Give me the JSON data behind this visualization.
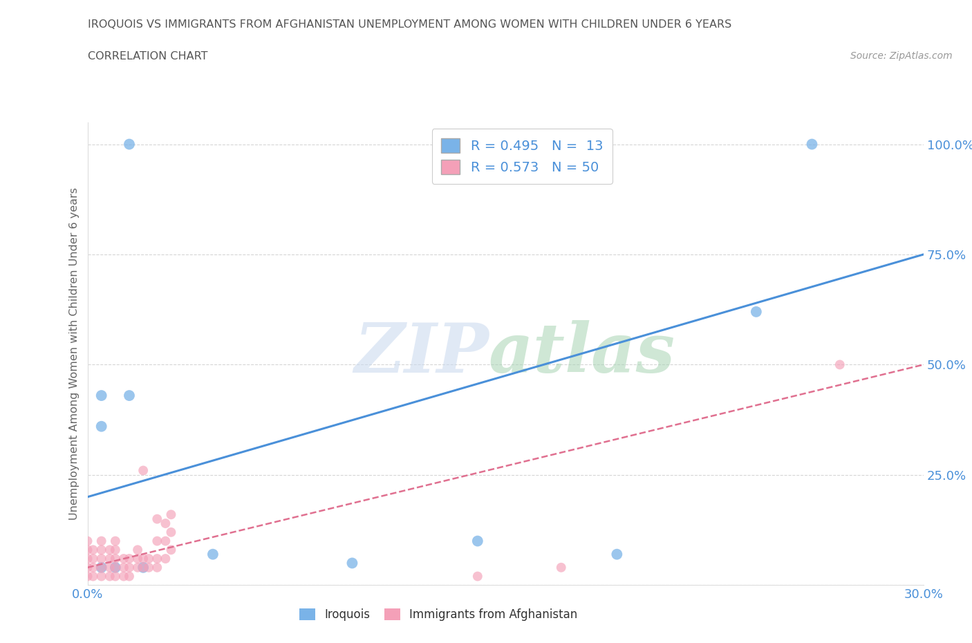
{
  "title_line1": "IROQUOIS VS IMMIGRANTS FROM AFGHANISTAN UNEMPLOYMENT AMONG WOMEN WITH CHILDREN UNDER 6 YEARS",
  "title_line2": "CORRELATION CHART",
  "source_text": "Source: ZipAtlas.com",
  "ylabel": "Unemployment Among Women with Children Under 6 years",
  "xlim": [
    0.0,
    0.3
  ],
  "ylim": [
    0.0,
    1.05
  ],
  "legend_items": [
    {
      "label": "R = 0.495   N =  13",
      "color": "#aec6f0"
    },
    {
      "label": "R = 0.573   N = 50",
      "color": "#f4b8c8"
    }
  ],
  "legend_bottom": [
    "Iroquois",
    "Immigrants from Afghanistan"
  ],
  "iroquois_points": [
    [
      0.015,
      1.0
    ],
    [
      0.26,
      1.0
    ],
    [
      0.005,
      0.43
    ],
    [
      0.015,
      0.43
    ],
    [
      0.24,
      0.62
    ],
    [
      0.005,
      0.36
    ],
    [
      0.14,
      0.1
    ],
    [
      0.005,
      0.04
    ],
    [
      0.01,
      0.04
    ],
    [
      0.02,
      0.04
    ],
    [
      0.045,
      0.07
    ],
    [
      0.19,
      0.07
    ],
    [
      0.095,
      0.05
    ]
  ],
  "afghanistan_points": [
    [
      0.0,
      0.02
    ],
    [
      0.0,
      0.04
    ],
    [
      0.0,
      0.06
    ],
    [
      0.0,
      0.08
    ],
    [
      0.0,
      0.1
    ],
    [
      0.002,
      0.02
    ],
    [
      0.002,
      0.04
    ],
    [
      0.002,
      0.06
    ],
    [
      0.002,
      0.08
    ],
    [
      0.005,
      0.02
    ],
    [
      0.005,
      0.04
    ],
    [
      0.005,
      0.06
    ],
    [
      0.005,
      0.08
    ],
    [
      0.005,
      0.1
    ],
    [
      0.008,
      0.02
    ],
    [
      0.008,
      0.04
    ],
    [
      0.008,
      0.06
    ],
    [
      0.008,
      0.08
    ],
    [
      0.01,
      0.02
    ],
    [
      0.01,
      0.04
    ],
    [
      0.01,
      0.06
    ],
    [
      0.01,
      0.08
    ],
    [
      0.01,
      0.1
    ],
    [
      0.013,
      0.02
    ],
    [
      0.013,
      0.04
    ],
    [
      0.013,
      0.06
    ],
    [
      0.015,
      0.02
    ],
    [
      0.015,
      0.04
    ],
    [
      0.015,
      0.06
    ],
    [
      0.018,
      0.04
    ],
    [
      0.018,
      0.06
    ],
    [
      0.018,
      0.08
    ],
    [
      0.02,
      0.04
    ],
    [
      0.02,
      0.06
    ],
    [
      0.02,
      0.26
    ],
    [
      0.022,
      0.04
    ],
    [
      0.022,
      0.06
    ],
    [
      0.025,
      0.04
    ],
    [
      0.025,
      0.06
    ],
    [
      0.025,
      0.1
    ],
    [
      0.025,
      0.15
    ],
    [
      0.028,
      0.06
    ],
    [
      0.028,
      0.1
    ],
    [
      0.028,
      0.14
    ],
    [
      0.03,
      0.08
    ],
    [
      0.03,
      0.12
    ],
    [
      0.03,
      0.16
    ],
    [
      0.14,
      0.02
    ],
    [
      0.17,
      0.04
    ],
    [
      0.27,
      0.5
    ]
  ],
  "iroquois_line": {
    "x0": 0.0,
    "y0": 0.2,
    "x1": 0.3,
    "y1": 0.75
  },
  "afghanistan_line": {
    "x0": 0.0,
    "y0": 0.04,
    "x1": 0.3,
    "y1": 0.5
  },
  "iroquois_line_color": "#4a90d9",
  "afghanistan_line_color": "#e07090",
  "iroquois_scatter_color": "#7ab3e8",
  "afghanistan_scatter_color": "#f4a0b8",
  "grid_color": "#cccccc",
  "background_color": "#ffffff",
  "title_color": "#555555",
  "axis_label_color": "#666666",
  "tick_color": "#4a90d9",
  "source_color": "#999999"
}
